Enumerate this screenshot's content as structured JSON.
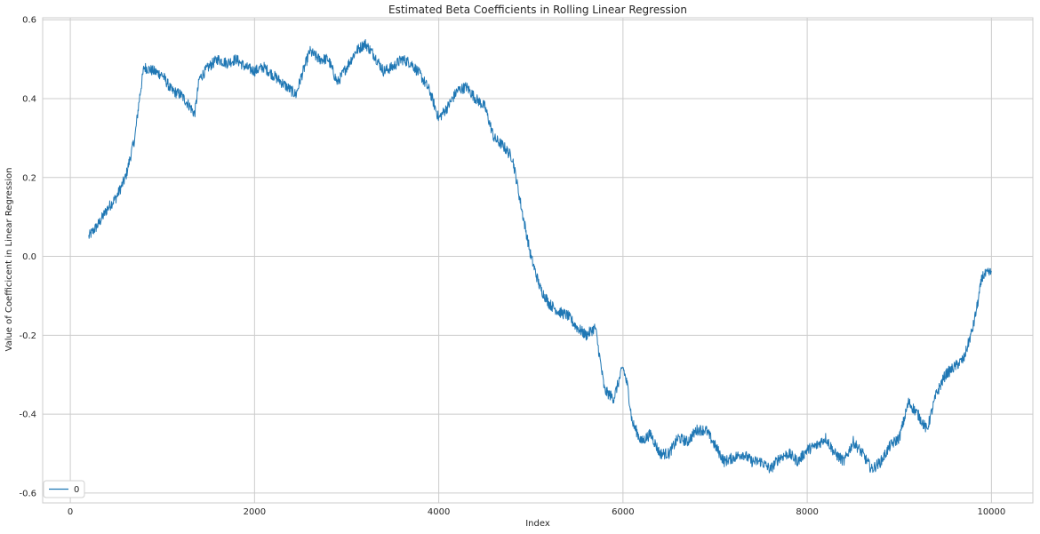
{
  "chart_data": {
    "type": "line",
    "title": "Estimated Beta Coefficients in Rolling Linear Regression",
    "xlabel": "Index",
    "ylabel": "Value of Coefficicent in Linear Regression",
    "xlim": [
      -300,
      10450
    ],
    "ylim": [
      -0.625,
      0.605
    ],
    "xticks": [
      0,
      2000,
      4000,
      6000,
      8000,
      10000
    ],
    "yticks": [
      -0.6,
      -0.4,
      -0.2,
      0.0,
      0.2,
      0.4,
      0.6
    ],
    "xtick_labels": [
      "0",
      "2000",
      "4000",
      "6000",
      "8000",
      "10000"
    ],
    "ytick_labels": [
      "-0.6",
      "-0.4",
      "-0.2",
      "0.0",
      "0.2",
      "0.4",
      "0.6"
    ],
    "grid": true,
    "legend": {
      "position": "lower-left",
      "entries": [
        "0"
      ]
    },
    "series": [
      {
        "name": "0",
        "color": "#1f77b4",
        "x": [
          200,
          300,
          400,
          500,
          600,
          700,
          750,
          800,
          900,
          1000,
          1100,
          1200,
          1300,
          1350,
          1400,
          1500,
          1600,
          1700,
          1800,
          1900,
          2000,
          2100,
          2200,
          2300,
          2400,
          2450,
          2500,
          2600,
          2700,
          2800,
          2900,
          3000,
          3100,
          3200,
          3300,
          3400,
          3500,
          3600,
          3700,
          3800,
          3900,
          4000,
          4100,
          4200,
          4300,
          4400,
          4500,
          4600,
          4700,
          4800,
          4900,
          5000,
          5100,
          5200,
          5300,
          5400,
          5500,
          5600,
          5700,
          5800,
          5900,
          6000,
          6050,
          6100,
          6200,
          6300,
          6400,
          6500,
          6600,
          6700,
          6800,
          6900,
          7000,
          7100,
          7200,
          7300,
          7400,
          7500,
          7600,
          7700,
          7800,
          7900,
          8000,
          8100,
          8200,
          8300,
          8400,
          8500,
          8600,
          8700,
          8800,
          8900,
          9000,
          9100,
          9200,
          9300,
          9400,
          9500,
          9600,
          9700,
          9800,
          9850,
          9900,
          10000
        ],
        "y": [
          0.05,
          0.08,
          0.12,
          0.15,
          0.2,
          0.3,
          0.4,
          0.48,
          0.47,
          0.46,
          0.42,
          0.41,
          0.38,
          0.36,
          0.45,
          0.48,
          0.5,
          0.49,
          0.5,
          0.48,
          0.47,
          0.48,
          0.46,
          0.44,
          0.42,
          0.41,
          0.45,
          0.52,
          0.5,
          0.5,
          0.44,
          0.48,
          0.52,
          0.54,
          0.51,
          0.47,
          0.48,
          0.5,
          0.49,
          0.46,
          0.42,
          0.35,
          0.38,
          0.42,
          0.43,
          0.4,
          0.38,
          0.3,
          0.28,
          0.25,
          0.12,
          0.0,
          -0.08,
          -0.12,
          -0.14,
          -0.15,
          -0.18,
          -0.2,
          -0.18,
          -0.34,
          -0.36,
          -0.28,
          -0.33,
          -0.42,
          -0.47,
          -0.45,
          -0.5,
          -0.5,
          -0.46,
          -0.47,
          -0.44,
          -0.44,
          -0.48,
          -0.52,
          -0.51,
          -0.5,
          -0.52,
          -0.52,
          -0.54,
          -0.51,
          -0.5,
          -0.52,
          -0.49,
          -0.48,
          -0.46,
          -0.5,
          -0.52,
          -0.47,
          -0.5,
          -0.54,
          -0.52,
          -0.48,
          -0.46,
          -0.37,
          -0.4,
          -0.44,
          -0.35,
          -0.3,
          -0.28,
          -0.26,
          -0.18,
          -0.12,
          -0.05,
          -0.04
        ]
      }
    ]
  }
}
